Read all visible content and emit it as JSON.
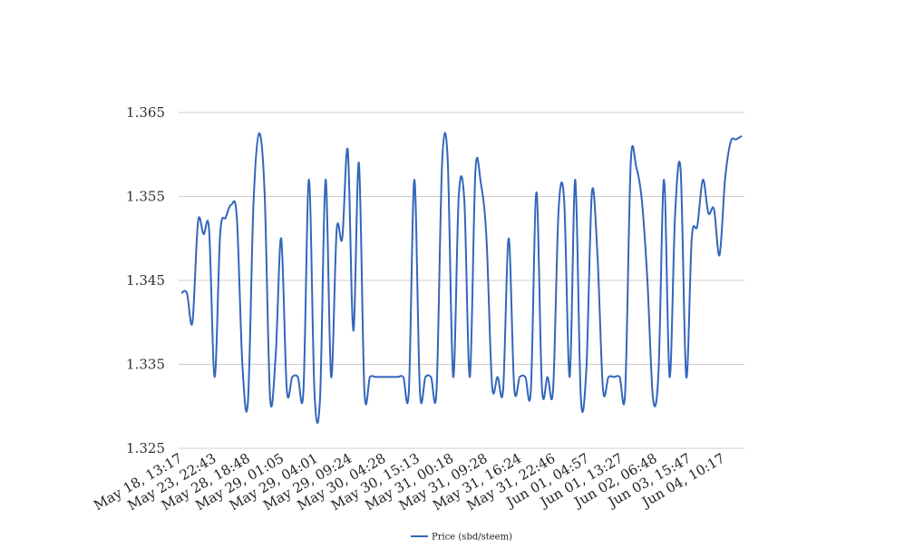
{
  "chart_data": {
    "type": "line",
    "title": "",
    "xlabel": "",
    "ylabel": "",
    "ylim": [
      1.325,
      1.365
    ],
    "yticks": [
      "1.325",
      "1.335",
      "1.345",
      "1.355",
      "1.365"
    ],
    "grid": true,
    "legend_position": "bottom-center",
    "x_tick_labels": [
      "May 18, 13:17",
      "May 23, 22:43",
      "May 28, 18:48",
      "May 29, 01:05",
      "May 29, 04:01",
      "May 29, 09:24",
      "May 30, 04:28",
      "May 30, 15:13",
      "May 31, 00:18",
      "May 31, 09:28",
      "May 31, 16:24",
      "May 31, 22:46",
      "Jun 01, 04:57",
      "Jun 01, 13:27",
      "Jun 02, 06:48",
      "Jun 03, 15:47",
      "Jun 04, 10:17"
    ],
    "series": [
      {
        "name": "Price (sbd/steem)",
        "color": "#3366bb",
        "values": [
          1.3435,
          1.3435,
          1.34,
          1.352,
          1.3505,
          1.351,
          1.3335,
          1.3505,
          1.3525,
          1.354,
          1.3525,
          1.335,
          1.3305,
          1.354,
          1.3625,
          1.3555,
          1.331,
          1.336,
          1.35,
          1.332,
          1.3335,
          1.3335,
          1.3318,
          1.357,
          1.3315,
          1.331,
          1.357,
          1.3335,
          1.351,
          1.35,
          1.3605,
          1.339,
          1.359,
          1.3318,
          1.3335,
          1.3335,
          1.3335,
          1.3335,
          1.3335,
          1.3335,
          1.3335,
          1.3318,
          1.357,
          1.3318,
          1.3335,
          1.3335,
          1.332,
          1.359,
          1.3595,
          1.3335,
          1.355,
          1.3545,
          1.3335,
          1.358,
          1.3565,
          1.35,
          1.3325,
          1.3335,
          1.332,
          1.35,
          1.3322,
          1.3335,
          1.3335,
          1.332,
          1.3555,
          1.3322,
          1.3335,
          1.332,
          1.3535,
          1.3545,
          1.3335,
          1.357,
          1.331,
          1.3345,
          1.3555,
          1.348,
          1.332,
          1.3335,
          1.3335,
          1.3335,
          1.3318,
          1.359,
          1.3585,
          1.3545,
          1.345,
          1.331,
          1.334,
          1.357,
          1.3335,
          1.353,
          1.358,
          1.3335,
          1.35,
          1.3515,
          1.357,
          1.353,
          1.3535,
          1.348,
          1.357,
          1.3615,
          1.3618,
          1.3622
        ]
      }
    ]
  }
}
